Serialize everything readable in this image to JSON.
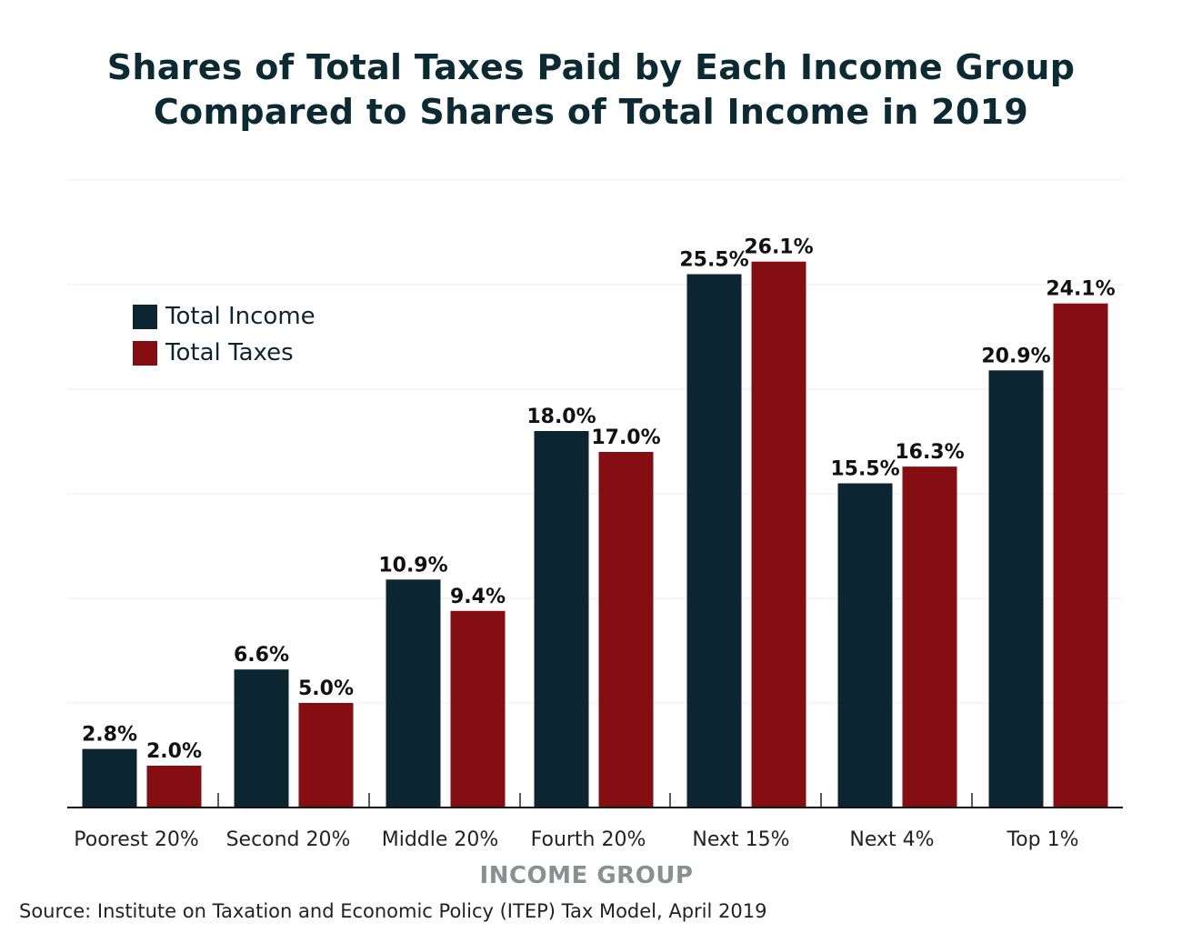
{
  "chart_data": {
    "type": "bar",
    "title_lines": [
      "Shares of Total Taxes Paid by Each Income Group",
      "Compared to Shares of Total Income in 2019"
    ],
    "xlabel": "INCOME GROUP",
    "ylabel": "",
    "categories": [
      "Poorest 20%",
      "Second 20%",
      "Middle 20%",
      "Fourth 20%",
      "Next 15%",
      "Next 4%",
      "Top 1%"
    ],
    "series": [
      {
        "name": "Total Income",
        "color": "#0b2630",
        "values": [
          2.8,
          6.6,
          10.9,
          18.0,
          25.5,
          15.5,
          20.9
        ],
        "labels": [
          "2.8%",
          "6.6%",
          "10.9%",
          "18.0%",
          "25.5%",
          "15.5%",
          "20.9%"
        ]
      },
      {
        "name": "Total Taxes",
        "color": "#850e13",
        "values": [
          2.0,
          5.0,
          9.4,
          17.0,
          26.1,
          16.3,
          24.1
        ],
        "labels": [
          "2.0%",
          "5.0%",
          "9.4%",
          "17.0%",
          "26.1%",
          "16.3%",
          "24.1%"
        ]
      }
    ],
    "ylim": [
      0,
      30
    ],
    "grid": true,
    "legend": "top-left",
    "source": "Source: Institute on Taxation and Economic Policy (ITEP) Tax Model, April 2019"
  }
}
